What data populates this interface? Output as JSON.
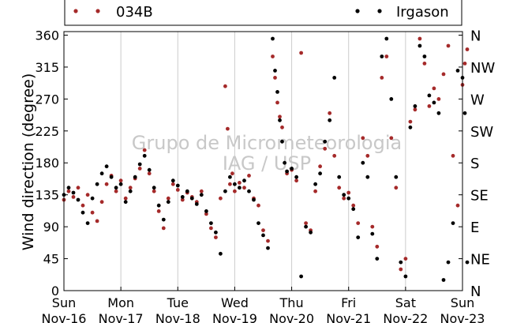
{
  "chart_data": {
    "type": "scatter",
    "ylabel": "Wind direction (degree)",
    "ylim": [
      0,
      365
    ],
    "xlim": [
      "2014-11-16",
      "2014-11-23"
    ],
    "yticks": [
      0,
      45,
      90,
      135,
      180,
      225,
      270,
      315,
      360
    ],
    "compass_labels": [
      {
        "y": 0,
        "label": "N"
      },
      {
        "y": 45,
        "label": "NE"
      },
      {
        "y": 90,
        "label": "E"
      },
      {
        "y": 135,
        "label": "SE"
      },
      {
        "y": 180,
        "label": "S"
      },
      {
        "y": 225,
        "label": "SW"
      },
      {
        "y": 270,
        "label": "W"
      },
      {
        "y": 315,
        "label": "NW"
      },
      {
        "y": 360,
        "label": "N"
      }
    ],
    "xticks": [
      {
        "date": "2014-11-16",
        "day": "Sun",
        "date_label": "Nov-16"
      },
      {
        "date": "2014-11-17",
        "day": "Mon",
        "date_label": "Nov-17"
      },
      {
        "date": "2014-11-18",
        "day": "Tue",
        "date_label": "Nov-18"
      },
      {
        "date": "2014-11-19",
        "day": "Wed",
        "date_label": "Nov-19"
      },
      {
        "date": "2014-11-20",
        "day": "Thu",
        "date_label": "Nov-20"
      },
      {
        "date": "2014-11-21",
        "day": "Fri",
        "date_label": "Nov-21"
      },
      {
        "date": "2014-11-22",
        "day": "Sat",
        "date_label": "Nov-22"
      },
      {
        "date": "2014-11-23",
        "day": "Sun",
        "date_label": "Nov-23"
      }
    ],
    "vertical_grid": true,
    "legend": {
      "placement": "top"
    },
    "watermark": {
      "line1": "Grupo de Micrometeorologia",
      "line2": "IAG / USP"
    },
    "series": [
      {
        "name": "034B",
        "color": "#a52a2a",
        "points": [
          [
            "2014-11-16 00:00",
            128
          ],
          [
            "2014-11-16 02:00",
            140
          ],
          [
            "2014-11-16 04:00",
            132
          ],
          [
            "2014-11-16 06:00",
            145
          ],
          [
            "2014-11-16 08:00",
            120
          ],
          [
            "2014-11-16 10:00",
            135
          ],
          [
            "2014-11-16 12:00",
            110
          ],
          [
            "2014-11-16 14:00",
            98
          ],
          [
            "2014-11-16 16:00",
            125
          ],
          [
            "2014-11-16 18:00",
            150
          ],
          [
            "2014-11-16 20:00",
            162
          ],
          [
            "2014-11-16 22:00",
            140
          ],
          [
            "2014-11-17 00:00",
            155
          ],
          [
            "2014-11-17 02:00",
            130
          ],
          [
            "2014-11-17 04:00",
            145
          ],
          [
            "2014-11-17 06:00",
            158
          ],
          [
            "2014-11-17 08:00",
            172
          ],
          [
            "2014-11-17 10:00",
            198
          ],
          [
            "2014-11-17 12:00",
            165
          ],
          [
            "2014-11-17 14:00",
            140
          ],
          [
            "2014-11-17 16:00",
            112
          ],
          [
            "2014-11-17 18:00",
            88
          ],
          [
            "2014-11-17 20:00",
            130
          ],
          [
            "2014-11-17 22:00",
            150
          ],
          [
            "2014-11-18 00:00",
            142
          ],
          [
            "2014-11-18 02:00",
            128
          ],
          [
            "2014-11-18 04:00",
            138
          ],
          [
            "2014-11-18 06:00",
            132
          ],
          [
            "2014-11-18 08:00",
            125
          ],
          [
            "2014-11-18 10:00",
            140
          ],
          [
            "2014-11-18 12:00",
            108
          ],
          [
            "2014-11-18 14:00",
            88
          ],
          [
            "2014-11-18 16:00",
            75
          ],
          [
            "2014-11-18 18:00",
            130
          ],
          [
            "2014-11-18 20:00",
            288
          ],
          [
            "2014-11-18 21:00",
            228
          ],
          [
            "2014-11-18 22:00",
            150
          ],
          [
            "2014-11-18 23:00",
            165
          ],
          [
            "2014-11-19 00:00",
            140
          ],
          [
            "2014-11-19 02:00",
            152
          ],
          [
            "2014-11-19 04:00",
            145
          ],
          [
            "2014-11-19 06:00",
            162
          ],
          [
            "2014-11-19 08:00",
            130
          ],
          [
            "2014-11-19 10:00",
            120
          ],
          [
            "2014-11-19 12:00",
            85
          ],
          [
            "2014-11-19 14:00",
            70
          ],
          [
            "2014-11-19 16:00",
            330
          ],
          [
            "2014-11-19 17:00",
            300
          ],
          [
            "2014-11-19 18:00",
            265
          ],
          [
            "2014-11-19 19:00",
            245
          ],
          [
            "2014-11-19 20:00",
            230
          ],
          [
            "2014-11-19 22:00",
            165
          ],
          [
            "2014-11-20 00:00",
            170
          ],
          [
            "2014-11-20 02:00",
            155
          ],
          [
            "2014-11-20 04:00",
            335
          ],
          [
            "2014-11-20 06:00",
            95
          ],
          [
            "2014-11-20 08:00",
            85
          ],
          [
            "2014-11-20 10:00",
            140
          ],
          [
            "2014-11-20 12:00",
            175
          ],
          [
            "2014-11-20 14:00",
            200
          ],
          [
            "2014-11-20 16:00",
            250
          ],
          [
            "2014-11-20 18:00",
            190
          ],
          [
            "2014-11-20 20:00",
            145
          ],
          [
            "2014-11-20 22:00",
            130
          ],
          [
            "2014-11-21 00:00",
            138
          ],
          [
            "2014-11-21 02:00",
            120
          ],
          [
            "2014-11-21 04:00",
            95
          ],
          [
            "2014-11-21 06:00",
            215
          ],
          [
            "2014-11-21 08:00",
            190
          ],
          [
            "2014-11-21 10:00",
            90
          ],
          [
            "2014-11-21 12:00",
            62
          ],
          [
            "2014-11-21 14:00",
            300
          ],
          [
            "2014-11-21 16:00",
            330
          ],
          [
            "2014-11-21 18:00",
            215
          ],
          [
            "2014-11-21 20:00",
            145
          ],
          [
            "2014-11-21 22:00",
            30
          ],
          [
            "2014-11-22 00:00",
            45
          ],
          [
            "2014-11-22 02:00",
            238
          ],
          [
            "2014-11-22 04:00",
            255
          ],
          [
            "2014-11-22 06:00",
            355
          ],
          [
            "2014-11-22 08:00",
            320
          ],
          [
            "2014-11-22 10:00",
            260
          ],
          [
            "2014-11-22 12:00",
            285
          ],
          [
            "2014-11-22 14:00",
            270
          ],
          [
            "2014-11-22 16:00",
            305
          ],
          [
            "2014-11-22 18:00",
            345
          ],
          [
            "2014-11-22 20:00",
            190
          ],
          [
            "2014-11-22 22:00",
            120
          ],
          [
            "2014-11-23 00:00",
            290
          ],
          [
            "2014-11-23 01:00",
            320
          ],
          [
            "2014-11-23 02:00",
            340
          ]
        ]
      },
      {
        "name": "Irgason",
        "color": "#000000",
        "points": [
          [
            "2014-11-16 00:00",
            135
          ],
          [
            "2014-11-16 02:00",
            145
          ],
          [
            "2014-11-16 04:00",
            138
          ],
          [
            "2014-11-16 06:00",
            128
          ],
          [
            "2014-11-16 08:00",
            110
          ],
          [
            "2014-11-16 10:00",
            95
          ],
          [
            "2014-11-16 12:00",
            130
          ],
          [
            "2014-11-16 14:00",
            150
          ],
          [
            "2014-11-16 16:00",
            165
          ],
          [
            "2014-11-16 18:00",
            175
          ],
          [
            "2014-11-16 20:00",
            160
          ],
          [
            "2014-11-16 22:00",
            145
          ],
          [
            "2014-11-17 00:00",
            150
          ],
          [
            "2014-11-17 02:00",
            125
          ],
          [
            "2014-11-17 04:00",
            140
          ],
          [
            "2014-11-17 06:00",
            160
          ],
          [
            "2014-11-17 08:00",
            178
          ],
          [
            "2014-11-17 10:00",
            190
          ],
          [
            "2014-11-17 12:00",
            170
          ],
          [
            "2014-11-17 14:00",
            145
          ],
          [
            "2014-11-17 16:00",
            120
          ],
          [
            "2014-11-17 18:00",
            100
          ],
          [
            "2014-11-17 20:00",
            125
          ],
          [
            "2014-11-17 22:00",
            155
          ],
          [
            "2014-11-18 00:00",
            148
          ],
          [
            "2014-11-18 02:00",
            132
          ],
          [
            "2014-11-18 04:00",
            140
          ],
          [
            "2014-11-18 06:00",
            130
          ],
          [
            "2014-11-18 08:00",
            122
          ],
          [
            "2014-11-18 10:00",
            135
          ],
          [
            "2014-11-18 12:00",
            112
          ],
          [
            "2014-11-18 14:00",
            95
          ],
          [
            "2014-11-18 16:00",
            82
          ],
          [
            "2014-11-18 18:00",
            52
          ],
          [
            "2014-11-18 20:00",
            140
          ],
          [
            "2014-11-18 22:00",
            160
          ],
          [
            "2014-11-19 00:00",
            150
          ],
          [
            "2014-11-19 02:00",
            145
          ],
          [
            "2014-11-19 04:00",
            155
          ],
          [
            "2014-11-19 06:00",
            140
          ],
          [
            "2014-11-19 08:00",
            128
          ],
          [
            "2014-11-19 10:00",
            95
          ],
          [
            "2014-11-19 12:00",
            78
          ],
          [
            "2014-11-19 14:00",
            60
          ],
          [
            "2014-11-19 16:00",
            355
          ],
          [
            "2014-11-19 17:00",
            310
          ],
          [
            "2014-11-19 18:00",
            280
          ],
          [
            "2014-11-19 19:00",
            240
          ],
          [
            "2014-11-19 20:00",
            210
          ],
          [
            "2014-11-19 21:00",
            180
          ],
          [
            "2014-11-19 22:00",
            168
          ],
          [
            "2014-11-20 00:00",
            172
          ],
          [
            "2014-11-20 02:00",
            160
          ],
          [
            "2014-11-20 04:00",
            20
          ],
          [
            "2014-11-20 06:00",
            90
          ],
          [
            "2014-11-20 08:00",
            82
          ],
          [
            "2014-11-20 10:00",
            150
          ],
          [
            "2014-11-20 12:00",
            165
          ],
          [
            "2014-11-20 14:00",
            210
          ],
          [
            "2014-11-20 16:00",
            240
          ],
          [
            "2014-11-20 18:00",
            300
          ],
          [
            "2014-11-20 20:00",
            160
          ],
          [
            "2014-11-20 22:00",
            135
          ],
          [
            "2014-11-21 00:00",
            130
          ],
          [
            "2014-11-21 02:00",
            115
          ],
          [
            "2014-11-21 04:00",
            75
          ],
          [
            "2014-11-21 06:00",
            180
          ],
          [
            "2014-11-21 08:00",
            160
          ],
          [
            "2014-11-21 10:00",
            80
          ],
          [
            "2014-11-21 12:00",
            45
          ],
          [
            "2014-11-21 14:00",
            330
          ],
          [
            "2014-11-21 16:00",
            355
          ],
          [
            "2014-11-21 18:00",
            270
          ],
          [
            "2014-11-21 20:00",
            160
          ],
          [
            "2014-11-21 22:00",
            40
          ],
          [
            "2014-11-22 00:00",
            20
          ],
          [
            "2014-11-22 02:00",
            230
          ],
          [
            "2014-11-22 04:00",
            260
          ],
          [
            "2014-11-22 06:00",
            345
          ],
          [
            "2014-11-22 08:00",
            330
          ],
          [
            "2014-11-22 10:00",
            275
          ],
          [
            "2014-11-22 12:00",
            265
          ],
          [
            "2014-11-22 14:00",
            250
          ],
          [
            "2014-11-22 16:00",
            15
          ],
          [
            "2014-11-22 18:00",
            40
          ],
          [
            "2014-11-22 20:00",
            95
          ],
          [
            "2014-11-22 22:00",
            310
          ],
          [
            "2014-11-23 00:00",
            300
          ],
          [
            "2014-11-23 01:00",
            250
          ],
          [
            "2014-11-23 02:00",
            40
          ]
        ]
      }
    ]
  }
}
